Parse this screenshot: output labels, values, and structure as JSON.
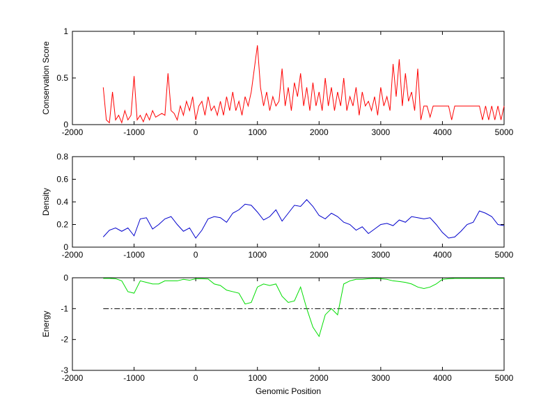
{
  "chart_data": [
    {
      "type": "line",
      "ylabel": "Conservation Score",
      "x": [
        -1500,
        -1450,
        -1400,
        -1350,
        -1300,
        -1250,
        -1200,
        -1150,
        -1100,
        -1050,
        -1000,
        -950,
        -900,
        -850,
        -800,
        -750,
        -700,
        -650,
        -600,
        -550,
        -500,
        -450,
        -400,
        -350,
        -300,
        -250,
        -200,
        -150,
        -100,
        -50,
        0,
        50,
        100,
        150,
        200,
        250,
        300,
        350,
        400,
        450,
        500,
        550,
        600,
        650,
        700,
        750,
        800,
        850,
        900,
        950,
        1000,
        1050,
        1100,
        1150,
        1200,
        1250,
        1300,
        1350,
        1400,
        1450,
        1500,
        1550,
        1600,
        1650,
        1700,
        1750,
        1800,
        1850,
        1900,
        1950,
        2000,
        2050,
        2100,
        2150,
        2200,
        2250,
        2300,
        2350,
        2400,
        2450,
        2500,
        2550,
        2600,
        2650,
        2700,
        2750,
        2800,
        2850,
        2900,
        2950,
        3000,
        3050,
        3100,
        3150,
        3200,
        3250,
        3300,
        3350,
        3400,
        3450,
        3500,
        3550,
        3600,
        3650,
        3700,
        3750,
        3800,
        3850,
        3900,
        3950,
        4000,
        4050,
        4100,
        4150,
        4200,
        4250,
        4300,
        4350,
        4400,
        4450,
        4500,
        4550,
        4600,
        4650,
        4700,
        4750,
        4800,
        4850,
        4900,
        4950,
        5000
      ],
      "series": [
        {
          "color": "#ff0000",
          "values": [
            0.4,
            0.05,
            0.02,
            0.35,
            0.05,
            0.1,
            0.02,
            0.15,
            0.05,
            0.1,
            0.52,
            0.05,
            0.1,
            0.03,
            0.12,
            0.05,
            0.15,
            0.08,
            0.1,
            0.12,
            0.1,
            0.55,
            0.15,
            0.12,
            0.05,
            0.2,
            0.1,
            0.25,
            0.15,
            0.3,
            0.05,
            0.2,
            0.25,
            0.1,
            0.3,
            0.15,
            0.2,
            0.1,
            0.25,
            0.1,
            0.3,
            0.15,
            0.35,
            0.15,
            0.25,
            0.1,
            0.3,
            0.2,
            0.35,
            0.6,
            0.85,
            0.4,
            0.2,
            0.35,
            0.15,
            0.3,
            0.2,
            0.25,
            0.6,
            0.2,
            0.4,
            0.15,
            0.45,
            0.3,
            0.55,
            0.2,
            0.4,
            0.15,
            0.45,
            0.2,
            0.35,
            0.15,
            0.5,
            0.2,
            0.4,
            0.15,
            0.35,
            0.2,
            0.5,
            0.15,
            0.3,
            0.2,
            0.4,
            0.1,
            0.35,
            0.2,
            0.25,
            0.15,
            0.3,
            0.1,
            0.4,
            0.2,
            0.3,
            0.15,
            0.65,
            0.3,
            0.7,
            0.2,
            0.55,
            0.25,
            0.35,
            0.15,
            0.6,
            0.05,
            0.2,
            0.2,
            0.08,
            0.2,
            0.2,
            0.2,
            0.2,
            0.2,
            0.2,
            0.05,
            0.2,
            0.2,
            0.2,
            0.2,
            0.2,
            0.2,
            0.2,
            0.2,
            0.2,
            0.05,
            0.2,
            0.05,
            0.2,
            0.05,
            0.2,
            0.05,
            0.2
          ]
        }
      ],
      "xlim": [
        -2000,
        5000
      ],
      "xticks": [
        -2000,
        -1000,
        0,
        1000,
        2000,
        3000,
        4000,
        5000
      ],
      "ylim": [
        0,
        1
      ],
      "yticks": [
        0,
        0.5,
        1
      ]
    },
    {
      "type": "line",
      "ylabel": "Density",
      "x": [
        -1500,
        -1400,
        -1300,
        -1200,
        -1100,
        -1000,
        -900,
        -800,
        -700,
        -600,
        -500,
        -400,
        -300,
        -200,
        -100,
        0,
        100,
        200,
        300,
        400,
        500,
        600,
        700,
        800,
        900,
        1000,
        1100,
        1200,
        1300,
        1400,
        1500,
        1600,
        1700,
        1800,
        1900,
        2000,
        2100,
        2200,
        2300,
        2400,
        2500,
        2600,
        2700,
        2800,
        2900,
        3000,
        3100,
        3200,
        3300,
        3400,
        3500,
        3600,
        3700,
        3800,
        3900,
        4000,
        4100,
        4200,
        4300,
        4400,
        4500,
        4600,
        4700,
        4800,
        4900,
        5000
      ],
      "series": [
        {
          "color": "#0000cc",
          "values": [
            0.09,
            0.15,
            0.17,
            0.14,
            0.17,
            0.1,
            0.25,
            0.26,
            0.16,
            0.2,
            0.25,
            0.27,
            0.2,
            0.14,
            0.17,
            0.08,
            0.15,
            0.25,
            0.27,
            0.26,
            0.22,
            0.3,
            0.33,
            0.38,
            0.37,
            0.31,
            0.24,
            0.27,
            0.33,
            0.23,
            0.3,
            0.37,
            0.36,
            0.42,
            0.36,
            0.28,
            0.25,
            0.3,
            0.27,
            0.22,
            0.2,
            0.15,
            0.18,
            0.12,
            0.16,
            0.2,
            0.21,
            0.19,
            0.24,
            0.22,
            0.27,
            0.26,
            0.25,
            0.26,
            0.2,
            0.13,
            0.08,
            0.09,
            0.14,
            0.2,
            0.22,
            0.32,
            0.3,
            0.27,
            0.2,
            0.19
          ]
        }
      ],
      "xlim": [
        -2000,
        5000
      ],
      "xticks": [
        -2000,
        -1000,
        0,
        1000,
        2000,
        3000,
        4000,
        5000
      ],
      "ylim": [
        0,
        0.8
      ],
      "yticks": [
        0,
        0.2,
        0.4,
        0.6,
        0.8
      ]
    },
    {
      "type": "line",
      "ylabel": "Energy",
      "xlabel": "Genomic Position",
      "x": [
        -1500,
        -1400,
        -1300,
        -1200,
        -1100,
        -1000,
        -900,
        -800,
        -700,
        -600,
        -500,
        -400,
        -300,
        -200,
        -100,
        0,
        100,
        200,
        300,
        400,
        500,
        600,
        700,
        800,
        900,
        1000,
        1100,
        1200,
        1300,
        1400,
        1500,
        1600,
        1700,
        1800,
        1900,
        2000,
        2100,
        2200,
        2300,
        2400,
        2500,
        2600,
        2700,
        2800,
        2900,
        3000,
        3100,
        3200,
        3300,
        3400,
        3500,
        3600,
        3700,
        3800,
        3900,
        4000,
        4100,
        4200,
        4300,
        4400,
        4500,
        4600,
        4700,
        4800,
        4900,
        5000
      ],
      "series": [
        {
          "color": "#00dd00",
          "values": [
            -0.02,
            -0.02,
            -0.03,
            -0.1,
            -0.45,
            -0.5,
            -0.1,
            -0.15,
            -0.2,
            -0.2,
            -0.1,
            -0.1,
            -0.1,
            -0.05,
            -0.08,
            -0.03,
            -0.03,
            -0.04,
            -0.2,
            -0.25,
            -0.4,
            -0.45,
            -0.5,
            -0.85,
            -0.8,
            -0.3,
            -0.2,
            -0.25,
            -0.2,
            -0.6,
            -0.8,
            -0.75,
            -0.3,
            -1.0,
            -1.6,
            -1.9,
            -1.2,
            -1.0,
            -1.2,
            -0.2,
            -0.1,
            -0.05,
            -0.05,
            -0.03,
            -0.02,
            -0.03,
            -0.05,
            -0.1,
            -0.12,
            -0.15,
            -0.2,
            -0.3,
            -0.35,
            -0.3,
            -0.2,
            -0.05,
            -0.03,
            -0.02,
            -0.02,
            -0.02,
            -0.02,
            -0.02,
            -0.02,
            -0.02,
            -0.02,
            -0.02
          ]
        }
      ],
      "hline": {
        "value": -1,
        "color": "#000000",
        "x": [
          -1500,
          5000
        ]
      },
      "xlim": [
        -2000,
        5000
      ],
      "xticks": [
        -2000,
        -1000,
        0,
        1000,
        2000,
        3000,
        4000,
        5000
      ],
      "ylim": [
        -3,
        0
      ],
      "yticks": [
        -3,
        -2,
        -1,
        0
      ]
    }
  ]
}
